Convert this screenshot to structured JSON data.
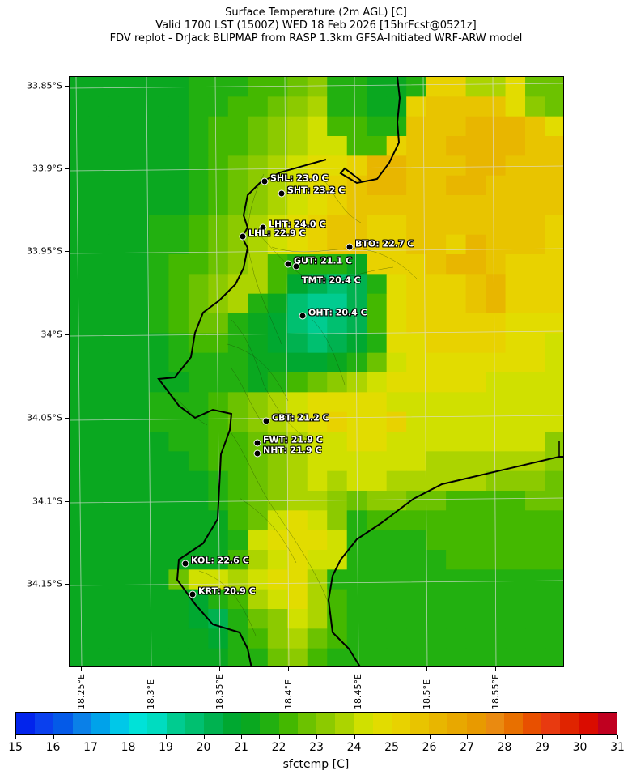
{
  "title": {
    "line1": "Surface Temperature (2m AGL) [C]",
    "line2": "Valid 1700 LST (1500Z) WED 18 Feb 2026 [15hrFcst@0521z]",
    "line3": "FDV replot - DrJack BLIPMAP from RASP 1.3km GFSA-Initiated WRF-ARW model"
  },
  "axes": {
    "lat_labels": [
      "33.85°S",
      "33.9°S",
      "33.95°S",
      "34°S",
      "34.05°S",
      "34.1°S",
      "34.15°S"
    ],
    "lon_labels": [
      "18.25°E",
      "18.3°E",
      "18.35°E",
      "18.4°E",
      "18.45°E",
      "18.5°E",
      "18.55°E"
    ]
  },
  "stations": [
    {
      "label": "SHL: 23.0 C"
    },
    {
      "label": "SHT: 23.2 C"
    },
    {
      "label": "LHT: 24.0 C"
    },
    {
      "label": "LHL: 22.9 C"
    },
    {
      "label": "BTO: 22.7 C"
    },
    {
      "label": "GUT: 21.1 C"
    },
    {
      "label": "TMT: 20.4 C"
    },
    {
      "label": "OHT: 20.4 C"
    },
    {
      "label": "CBT: 21.2 C"
    },
    {
      "label": "FWT: 21.9 C"
    },
    {
      "label": "NHT: 21.9 C"
    },
    {
      "label": "KOL: 22.6 C"
    },
    {
      "label": "KRT: 20.9 C"
    }
  ],
  "colorbar": {
    "label": "sfctemp [C]",
    "min": 15,
    "max": 31,
    "step": 0.5,
    "tick_labels": [
      "15",
      "16",
      "17",
      "18",
      "19",
      "20",
      "21",
      "22",
      "23",
      "24",
      "25",
      "26",
      "27",
      "28",
      "29",
      "30",
      "31"
    ],
    "colors": [
      "#0224ec",
      "#0a40ee",
      "#045ae8",
      "#0a80e8",
      "#00a2ea",
      "#00c8e8",
      "#00e2d8",
      "#00dcc0",
      "#00cc90",
      "#00c070",
      "#00b250",
      "#00a830",
      "#0aa820",
      "#22b010",
      "#44b800",
      "#6cc200",
      "#8cca00",
      "#acd400",
      "#d0e000",
      "#e2dc00",
      "#e8d200",
      "#e8c400",
      "#e8b600",
      "#e8a800",
      "#e89a00",
      "#ea8a10",
      "#e87000",
      "#e85000",
      "#e83a10",
      "#e02400",
      "#da0c00",
      "#c00020"
    ]
  },
  "field": {
    "units": "C",
    "bin_origin": 15,
    "bin_width": 0.5,
    "rows": [
      "GGGGGGHHHIIJKHHGGHOOLLNJJ",
      "GGGGGGHHIIJKLHHGGOPPPPNKJ",
      "GGGGGGHIIJKLMIIHHPPPQQQPN",
      "GGGGGGHIIJKLMMIIOPPQQQQPP",
      "GGGGGGHIJKLMNNOQQPPPQQPPP",
      "GGGGGGHIJKLMNOPQQPPQQPPPP",
      "GGGGGGHIJKLMNOPPPPPPPPPPP",
      "GGGGHHIJKLMNOPPOOPPPPPPPO",
      "GGGGHHIJKLMNOPPOOPPOQPPPO",
      "GGGGHIIJKLIHHHGOOOPQQPOOO",
      "GGGGHIJKLLIFEDEHNOOOPQOOO",
      "GGGGHIJKLHGDCCEINOOOPQOOO",
      "GGGGHIJJHGFDCDEINOOOOONNN",
      "GGGGGHIIHGFEDEFHNNOOOONNM",
      "GGGGGHHHHGGFFGHJMNNNNNNNM",
      "GGGGGGHHHGHIJKLMNNNNNMMMM",
      "GGGGHHHIJKLMNNNNMMMMMMMMM",
      "GGGGHHHIJKLMNONNOMMMMMMMM",
      "GGGGGHHIIJKLMMNNMMMMMMMMK",
      "GGGGGGHIIJKLMMMMMMLLLLLLK",
      "GGGGGGGHIJKLMLMMLLLLLKKKJ",
      "GGGGGGGHIJKLLKJKKJJIIIIJJ",
      "GGGGGGGGIJMNMKHIIIIIIIIII",
      "GGGGGGGGHMNNNMHHHHIIIIIII",
      "GGGGGGGGILMNMMHHHHHIIIIII",
      "GGGGGJMMLMNNLHHHHHHHHHHHH",
      "GGGGGGFHILMNLIHHHHHHHHHHH",
      "GGGGGGFEHJKMLIHHHHHHHHHHH",
      "GGGGGGGFHIKLJIHHHHHHHHHHH",
      "GGGGGGGGHHJKIHHHHHHHHHHHH"
    ]
  }
}
